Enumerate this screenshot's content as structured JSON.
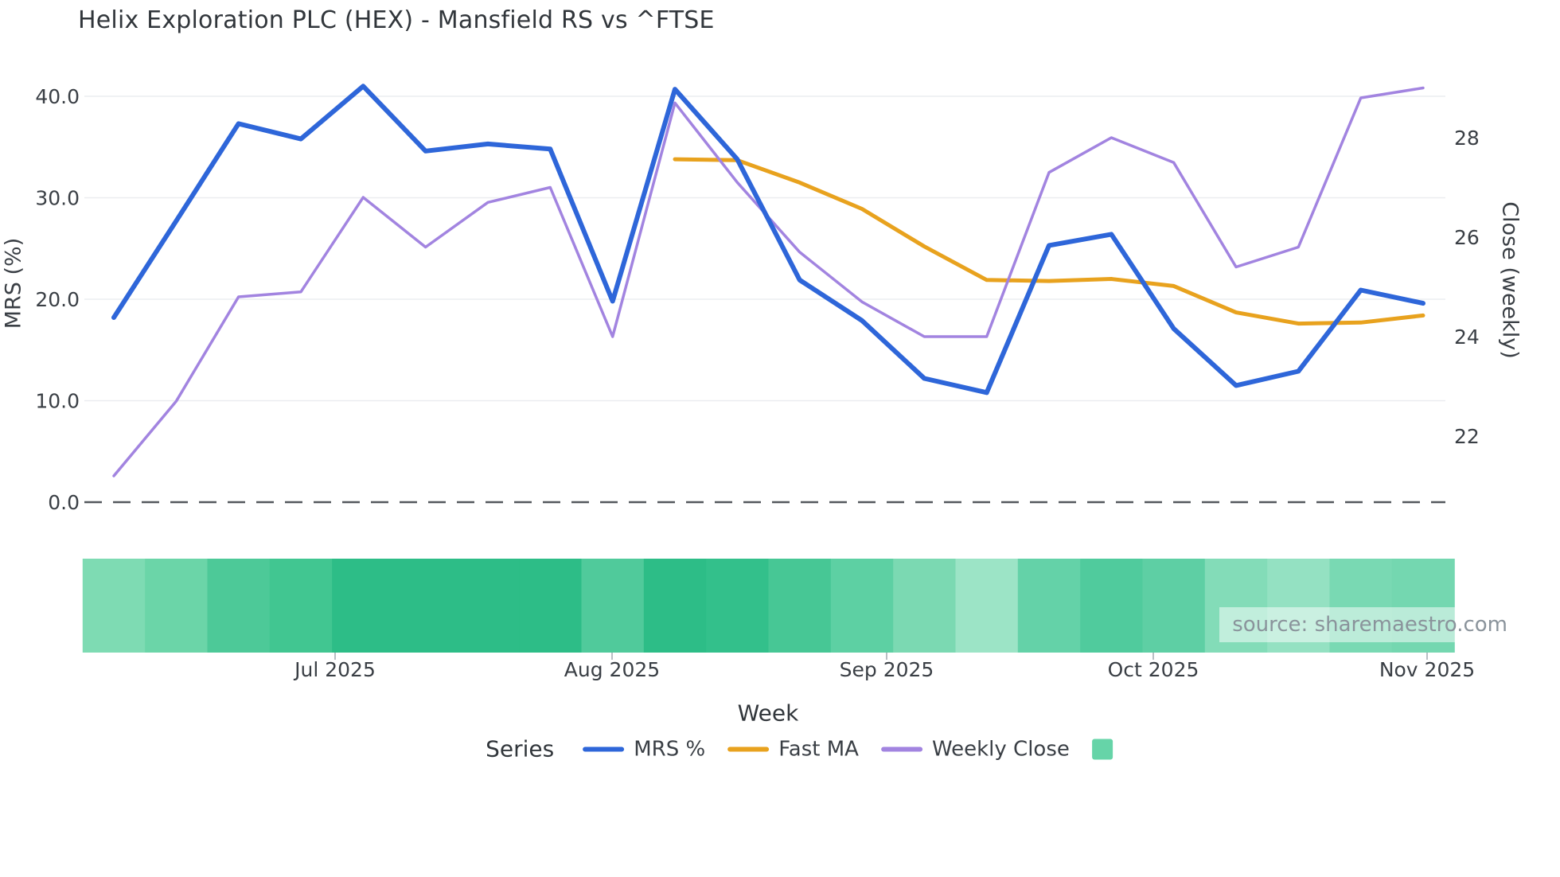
{
  "title": "Helix Exploration PLC (HEX) - Mansfield RS vs ^FTSE",
  "source": "source: sharemaestro.com",
  "axes": {
    "left": {
      "label": "MRS (%)",
      "tick_labels": [
        "40.0",
        "30.0",
        "20.0",
        "10.0",
        "0.0"
      ]
    },
    "right": {
      "label": "Close (weekly)",
      "tick_labels": [
        "28",
        "26",
        "24",
        "22"
      ]
    },
    "x": {
      "label": "Week",
      "tick_labels": [
        "Jul 2025",
        "Aug 2025",
        "Sep 2025",
        "Oct 2025",
        "Nov 2025"
      ]
    }
  },
  "legend": {
    "title": "Series",
    "items": [
      {
        "label": "MRS %",
        "color": "#2e66d9",
        "type": "line"
      },
      {
        "label": "Fast MA",
        "color": "#e8a21e",
        "type": "line"
      },
      {
        "label": "Weekly Close",
        "color": "#a284e0",
        "type": "line"
      },
      {
        "label": "",
        "color": "#66d4a8",
        "type": "square"
      }
    ]
  },
  "chart_data": {
    "type": "line",
    "title": "Helix Exploration PLC (HEX) - Mansfield RS vs ^FTSE",
    "xlabel": "Week",
    "x_tick_labels": [
      "Jul 2025",
      "Aug 2025",
      "Sep 2025",
      "Oct 2025",
      "Nov 2025"
    ],
    "x_unit": "weekly points, Jun 2025 - Nov 2025",
    "x": [
      1,
      2,
      3,
      4,
      5,
      6,
      7,
      8,
      9,
      10,
      11,
      12,
      13,
      14,
      15,
      16,
      17,
      18,
      19,
      20,
      21,
      22
    ],
    "left_axis": {
      "label": "MRS (%)",
      "ticks": [
        40.0,
        30.0,
        20.0,
        10.0,
        0.0
      ],
      "zero_line": "dashed"
    },
    "right_axis": {
      "label": "Close (weekly)",
      "ticks": [
        28,
        26,
        24,
        22
      ]
    },
    "grid": "horizontal only",
    "legend_position": "bottom",
    "series": [
      {
        "name": "MRS %",
        "axis": "left",
        "color": "#2e66d9",
        "values": [
          18.2,
          27.7,
          37.3,
          35.8,
          41.0,
          34.6,
          35.3,
          34.8,
          19.8,
          40.7,
          33.8,
          21.9,
          17.9,
          12.2,
          10.8,
          25.3,
          26.4,
          17.1,
          11.5,
          12.9,
          20.9,
          19.6
        ]
      },
      {
        "name": "Fast MA",
        "axis": "left",
        "color": "#e8a21e",
        "values": [
          null,
          null,
          null,
          null,
          null,
          null,
          null,
          null,
          null,
          33.8,
          33.7,
          31.5,
          28.9,
          25.2,
          21.9,
          21.8,
          22.0,
          21.3,
          18.7,
          17.6,
          17.7,
          18.4
        ]
      },
      {
        "name": "Weekly Close",
        "axis": "right",
        "color": "#a284e0",
        "values": [
          21.2,
          22.7,
          24.8,
          24.9,
          26.8,
          25.8,
          26.7,
          27.0,
          24.0,
          28.7,
          27.1,
          25.7,
          24.7,
          24.0,
          24.0,
          27.3,
          28.0,
          27.5,
          25.4,
          25.8,
          28.8,
          29.0
        ]
      }
    ],
    "heatmap_band": {
      "description": "one green cell per week along the bottom of the plot, darker = stronger",
      "cell_colors": [
        "#7edbb3",
        "#6bd5a8",
        "#4dc998",
        "#41c691",
        "#2dbd87",
        "#2dbd87",
        "#2dbd87",
        "#2dbd87",
        "#50ca9b",
        "#2dbd87",
        "#33c08b",
        "#47c795",
        "#5dd0a3",
        "#7bd9b2",
        "#9ce4c6",
        "#64d2a8",
        "#50cb9d",
        "#5ecfa4",
        "#83dcb8",
        "#94e1c2",
        "#79d9b3",
        "#74d7b0"
      ]
    }
  }
}
